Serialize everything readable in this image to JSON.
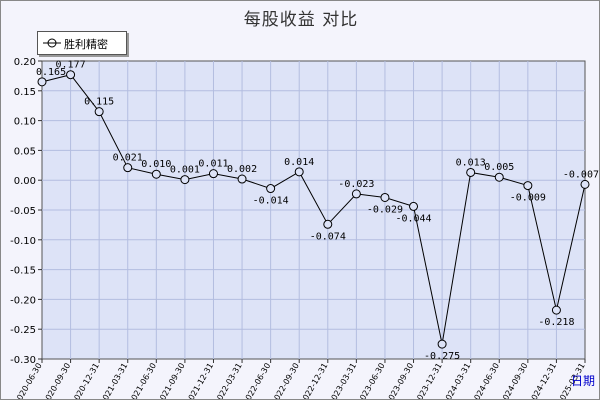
{
  "chart_data": {
    "type": "line",
    "title": "每股收益  对比",
    "xlabel": "日期",
    "ylabel": "",
    "ylim": [
      -0.3,
      0.2
    ],
    "ytick_step": 0.05,
    "grid": true,
    "legend_position": "top-left",
    "x": [
      "2020-06-30",
      "2020-09-30",
      "2020-12-31",
      "2021-03-31",
      "2021-06-30",
      "2021-09-30",
      "2021-12-31",
      "2022-03-31",
      "2022-06-30",
      "2022-09-30",
      "2022-12-31",
      "2023-03-31",
      "2023-06-30",
      "2023-09-30",
      "2023-12-31",
      "2024-03-31",
      "2024-06-30",
      "2024-09-30",
      "2024-12-31",
      "2025-03-31"
    ],
    "series": [
      {
        "name": "胜利精密",
        "values": [
          0.165,
          0.177,
          0.115,
          0.021,
          0.01,
          0.001,
          0.011,
          0.002,
          -0.014,
          0.014,
          -0.074,
          -0.023,
          -0.029,
          -0.044,
          -0.275,
          0.013,
          0.005,
          -0.009,
          -0.218,
          -0.007
        ],
        "labels": [
          "0.165",
          "0.177",
          "0.115",
          "0.021",
          "0.010",
          "0.001",
          "0.011",
          "0.002",
          "-0.014",
          "0.014",
          "-0.074",
          "-0.023",
          "-0.029",
          "-0.044",
          "-0.275",
          "0.013",
          "0.005",
          "-0.009",
          "-0.218",
          "-0.007"
        ]
      }
    ],
    "colors": {
      "line": "#000000",
      "plot_bg": "#dde3f7",
      "grid": "#b3bde0"
    }
  }
}
